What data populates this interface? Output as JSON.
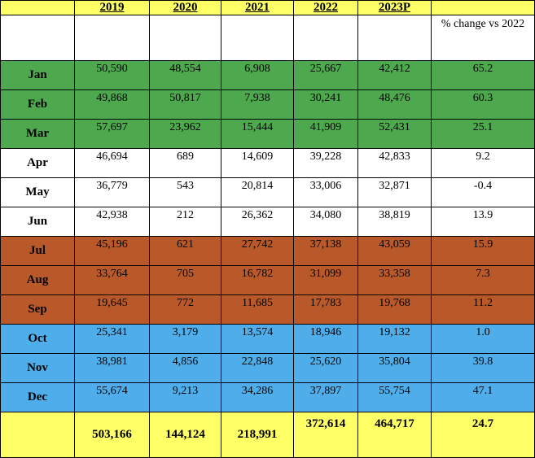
{
  "headers": [
    "",
    "2019",
    "2020",
    "2021",
    "2022",
    "2023P",
    ""
  ],
  "change_label": "% change vs 2022",
  "colors": {
    "header_yellow": "#ffff66",
    "q1_green": "#4ea94e",
    "q2_white": "#ffffff",
    "q3_rust": "#b9592a",
    "q4_blue": "#4faee9"
  },
  "rows": [
    {
      "month": "Jan",
      "v2019": "50,590",
      "v2020": "48,554",
      "v2021": "6,908",
      "v2022": "25,667",
      "v2023": "42,412",
      "pct": "65.2"
    },
    {
      "month": "Feb",
      "v2019": "49,868",
      "v2020": "50,817",
      "v2021": "7,938",
      "v2022": "30,241",
      "v2023": "48,476",
      "pct": "60.3"
    },
    {
      "month": "Mar",
      "v2019": "57,697",
      "v2020": "23,962",
      "v2021": "15,444",
      "v2022": "41,909",
      "v2023": "52,431",
      "pct": "25.1"
    },
    {
      "month": "Apr",
      "v2019": "46,694",
      "v2020": "689",
      "v2021": "14,609",
      "v2022": "39,228",
      "v2023": "42,833",
      "pct": "9.2"
    },
    {
      "month": "May",
      "v2019": "36,779",
      "v2020": "543",
      "v2021": "20,814",
      "v2022": "33,006",
      "v2023": "32,871",
      "pct": "-0.4"
    },
    {
      "month": "Jun",
      "v2019": "42,938",
      "v2020": "212",
      "v2021": "26,362",
      "v2022": "34,080",
      "v2023": "38,819",
      "pct": "13.9"
    },
    {
      "month": "Jul",
      "v2019": "45,196",
      "v2020": "621",
      "v2021": "27,742",
      "v2022": "37,138",
      "v2023": "43,059",
      "pct": "15.9"
    },
    {
      "month": "Aug",
      "v2019": "33,764",
      "v2020": "705",
      "v2021": "16,782",
      "v2022": "31,099",
      "v2023": "33,358",
      "pct": "7.3"
    },
    {
      "month": "Sep",
      "v2019": "19,645",
      "v2020": "772",
      "v2021": "11,685",
      "v2022": "17,783",
      "v2023": "19,768",
      "pct": "11.2"
    },
    {
      "month": "Oct",
      "v2019": "25,341",
      "v2020": "3,179",
      "v2021": "13,574",
      "v2022": "18,946",
      "v2023": "19,132",
      "pct": "1.0"
    },
    {
      "month": "Nov",
      "v2019": "38,981",
      "v2020": "4,856",
      "v2021": "22,848",
      "v2022": "25,620",
      "v2023": "35,804",
      "pct": "39.8"
    },
    {
      "month": "Dec",
      "v2019": "55,674",
      "v2020": "9,213",
      "v2021": "34,286",
      "v2022": "37,897",
      "v2023": "55,754",
      "pct": "47.1"
    }
  ],
  "totals": {
    "month": "",
    "v2019": "503,166",
    "v2020": "144,124",
    "v2021": "218,991",
    "v2022": "372,614",
    "v2023": "464,717",
    "pct": "24.7"
  }
}
